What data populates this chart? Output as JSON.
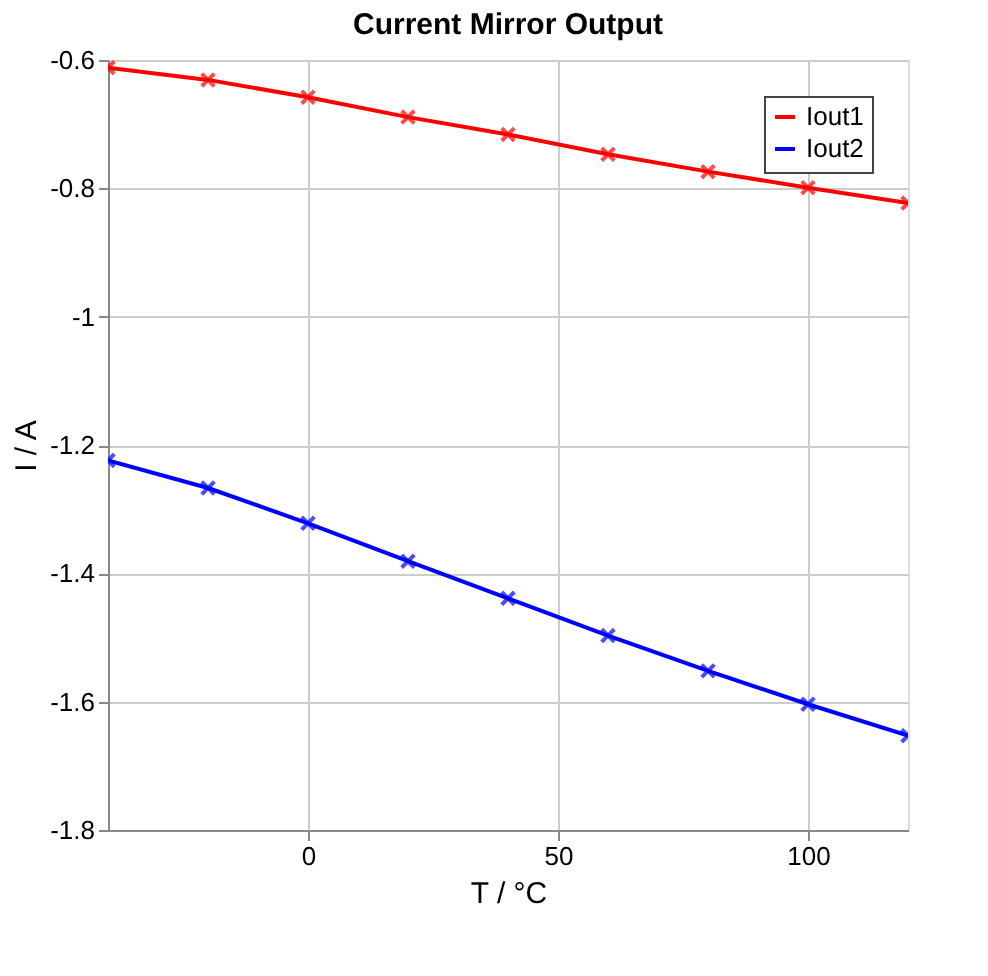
{
  "chart_data": {
    "type": "line",
    "title": "Current Mirror Output",
    "xlabel": "T / °C",
    "ylabel": "I / A",
    "x": [
      -40,
      -20,
      0,
      20,
      40,
      60,
      80,
      100,
      120
    ],
    "series": [
      {
        "name": "Iout1",
        "color": "#ff0000",
        "values": [
          -0.612,
          -0.631,
          -0.658,
          -0.689,
          -0.716,
          -0.747,
          -0.774,
          -0.799,
          -0.823
        ]
      },
      {
        "name": "Iout2",
        "color": "#0000ff",
        "values": [
          -1.224,
          -1.267,
          -1.322,
          -1.381,
          -1.439,
          -1.497,
          -1.552,
          -1.604,
          -1.653
        ]
      }
    ],
    "xlim": [
      -40,
      120
    ],
    "xticks": [
      0,
      50,
      100
    ],
    "ylim": [
      -1.8,
      -0.6
    ],
    "yticks": [
      -1.8,
      -1.6,
      -1.4,
      -1.2,
      -1,
      -0.8,
      -0.6
    ],
    "grid": true,
    "legend": "top right",
    "marker": "cross",
    "line_style": "solid"
  }
}
